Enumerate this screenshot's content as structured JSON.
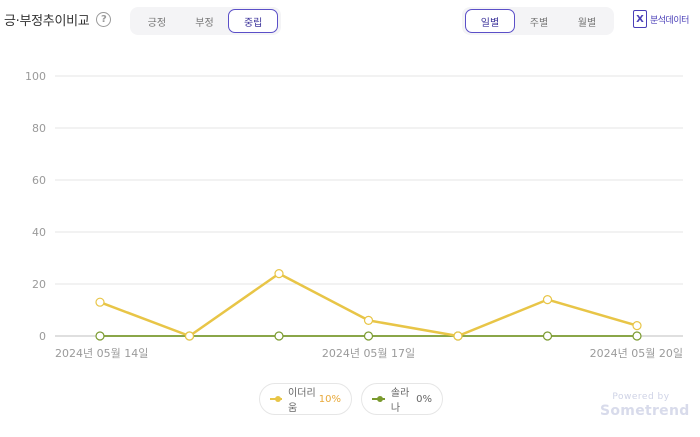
{
  "header": {
    "title": "긍·부정추이비교",
    "help_symbol": "?",
    "sentiment_tabs": [
      {
        "label": "긍정",
        "active": false
      },
      {
        "label": "부정",
        "active": false
      },
      {
        "label": "중립",
        "active": true
      }
    ],
    "period_tabs": [
      {
        "label": "일별",
        "active": true
      },
      {
        "label": "주별",
        "active": false
      },
      {
        "label": "월별",
        "active": false
      }
    ],
    "download": {
      "icon": "excel-icon",
      "icon_glyph": "X",
      "label": "분석데이터"
    }
  },
  "colors": {
    "accent": "#4a3fb8",
    "series_1": "#e8c547",
    "series_2": "#7a9a2e",
    "grid": "#e6e6e6",
    "axis_text": "#9a9a9a"
  },
  "chart_data": {
    "type": "line",
    "x": [
      "2024-05-14",
      "2024-05-15",
      "2024-05-16",
      "2024-05-17",
      "2024-05-18",
      "2024-05-19",
      "2024-05-20"
    ],
    "x_tick_labels": [
      {
        "index": 0,
        "label": "2024년 05월 14일"
      },
      {
        "index": 3,
        "label": "2024년 05월 17일"
      },
      {
        "index": 6,
        "label": "2024년 05월 20일"
      }
    ],
    "y_ticks": [
      0,
      20,
      40,
      60,
      80,
      100
    ],
    "ylim": [
      0,
      100
    ],
    "grid": true,
    "legend_position": "bottom-center",
    "series": [
      {
        "name": "이더리움",
        "values": [
          13,
          0,
          24,
          6,
          0,
          14,
          4
        ],
        "color": "#e8c547"
      },
      {
        "name": "솔라나",
        "values": [
          0,
          0,
          0,
          0,
          0,
          0,
          0
        ],
        "color": "#7a9a2e"
      }
    ]
  },
  "legend": [
    {
      "name": "이더리움",
      "value": "10%",
      "value_color": "#e8a93a"
    },
    {
      "name": "솔라나",
      "value": "0%",
      "value_color": "#666666"
    }
  ],
  "footer": {
    "powered_by": "Powered by",
    "brand": "Sometrend"
  }
}
